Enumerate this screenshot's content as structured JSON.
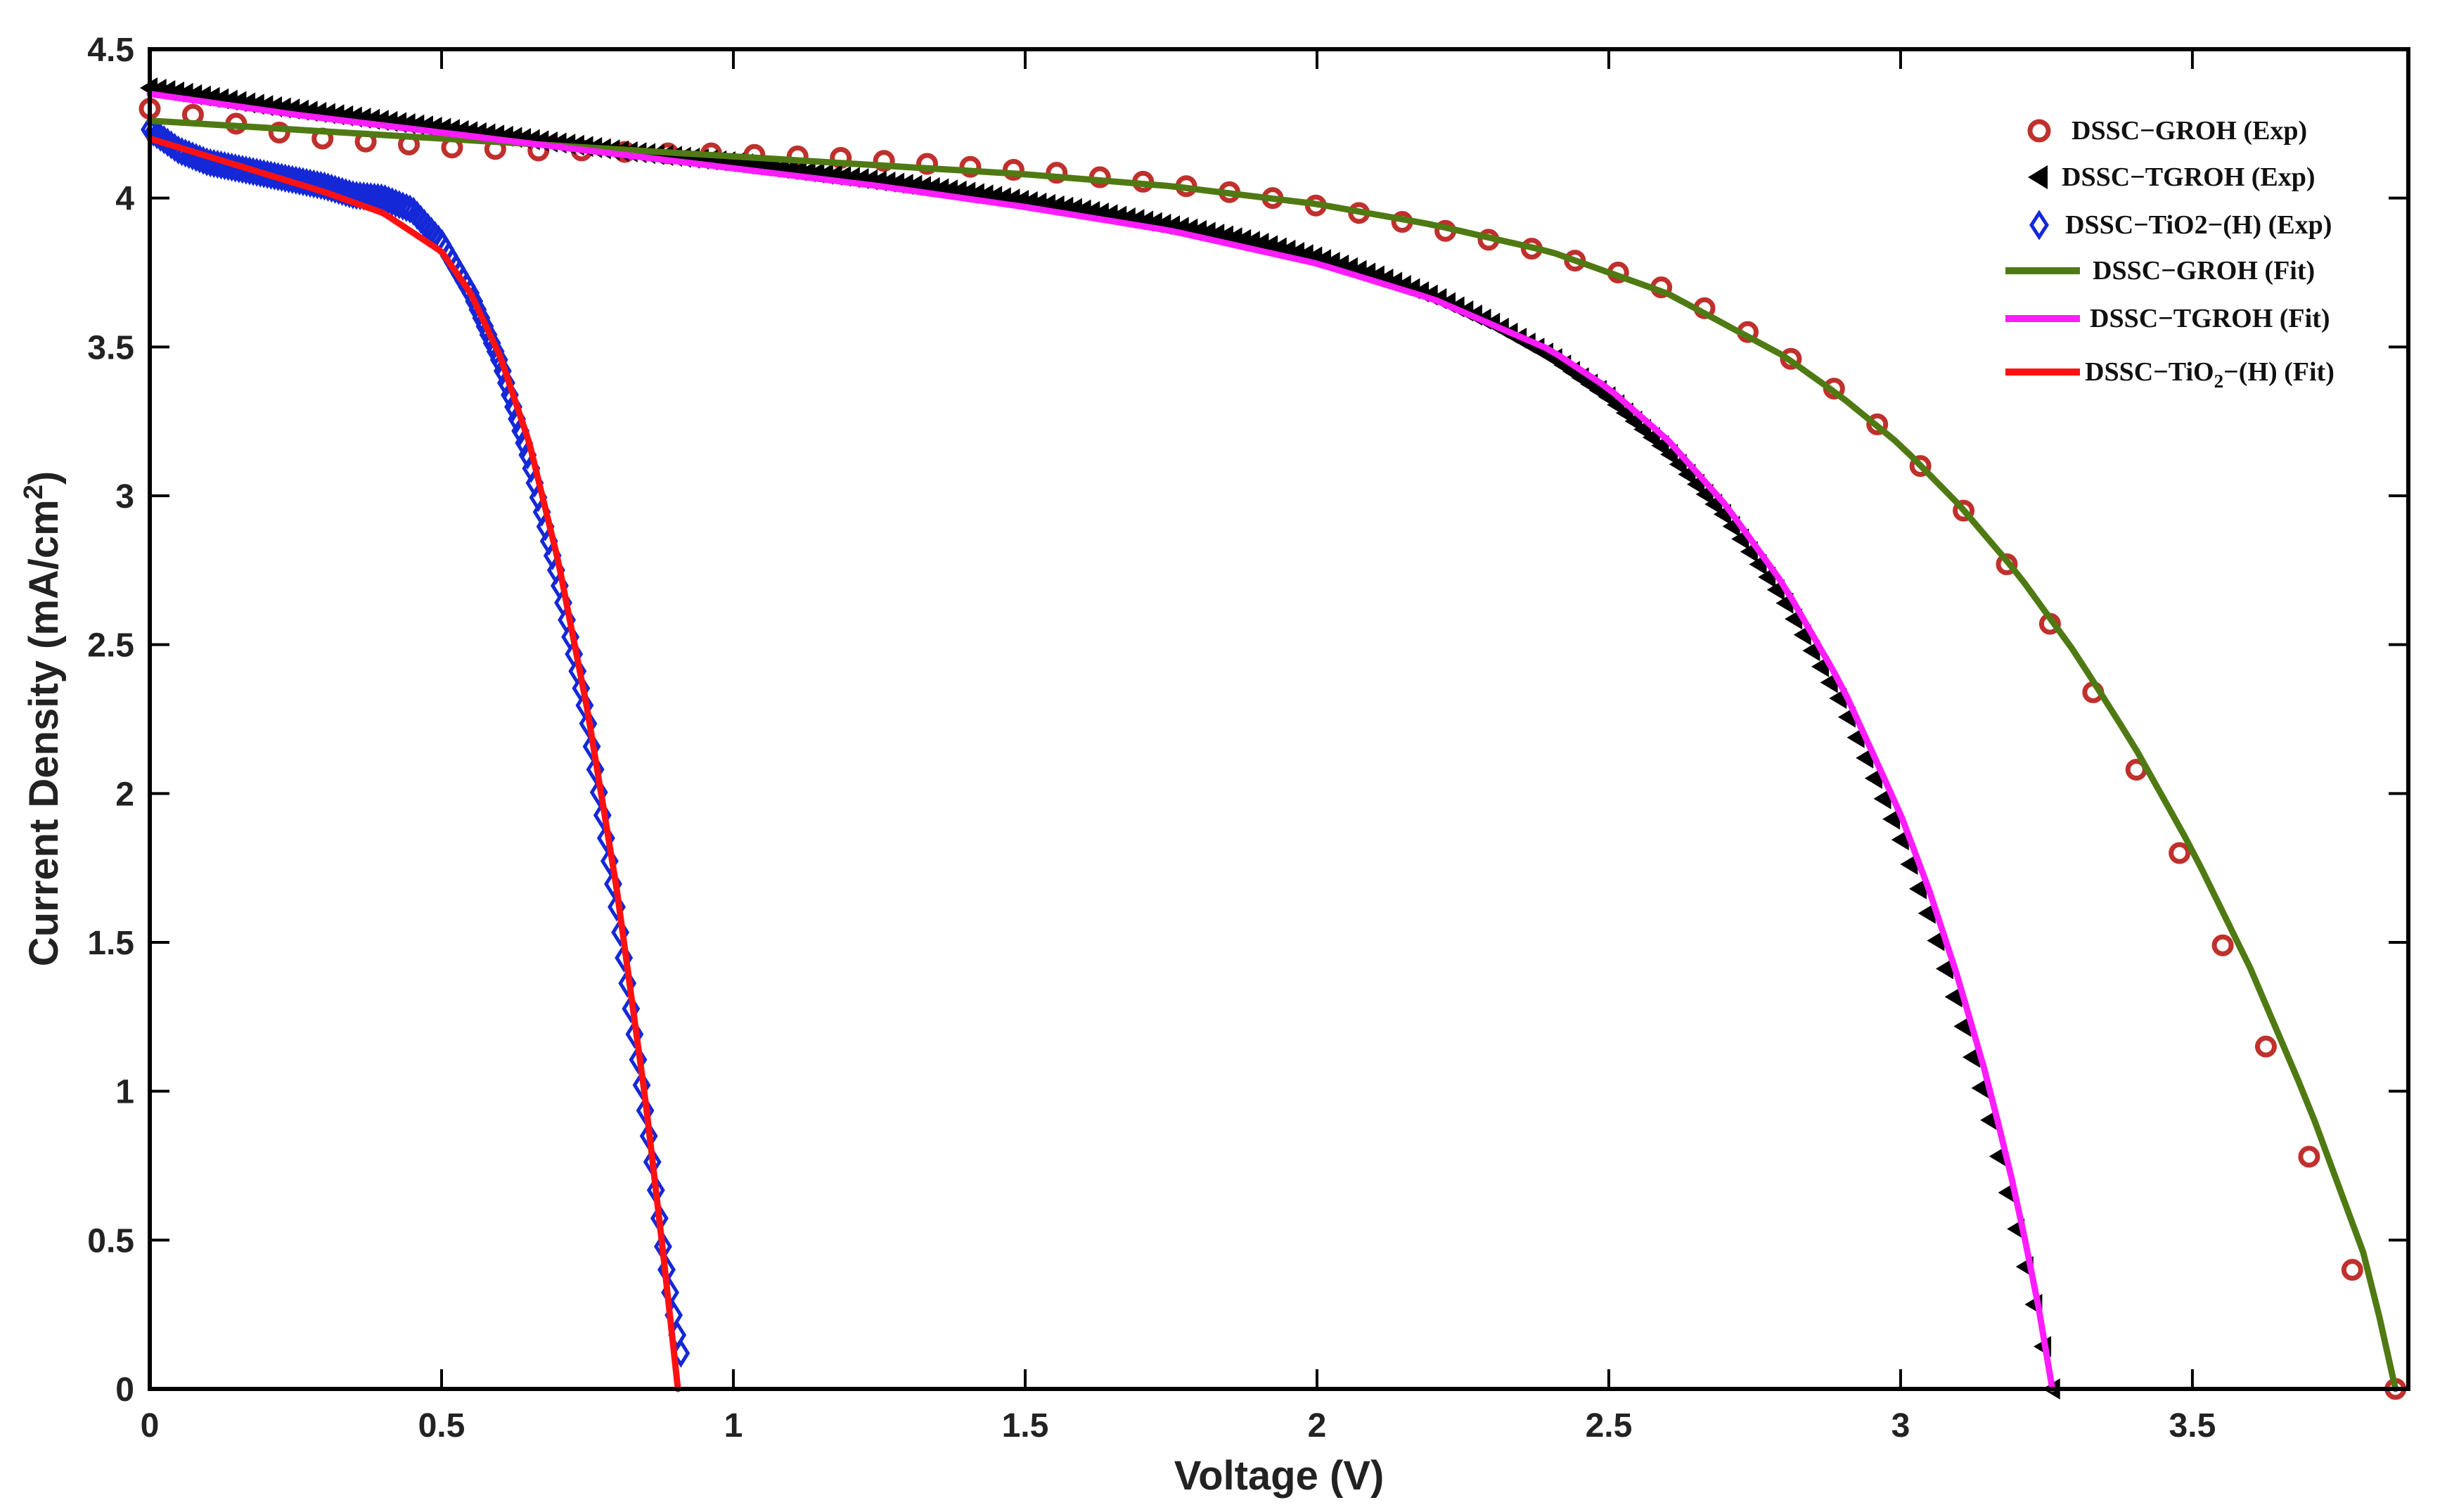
{
  "chart_data": {
    "type": "line",
    "title": "",
    "xlabel": "Voltage (V)",
    "ylabel_main": "Current  Density  (mA/cm",
    "ylabel_sup": "2",
    "ylabel_close": ")",
    "xlim": [
      0,
      3.87
    ],
    "ylim": [
      0,
      4.5
    ],
    "xticks": [
      0,
      0.5,
      1,
      1.5,
      2,
      2.5,
      3,
      3.5
    ],
    "xtick_labels": [
      "0",
      "0.5",
      "1",
      "1.5",
      "2",
      "2.5",
      "3",
      "3.5"
    ],
    "yticks": [
      0,
      0.5,
      1,
      1.5,
      2,
      2.5,
      3,
      3.5,
      4,
      4.5
    ],
    "ytick_labels": [
      "0",
      "0.5",
      "1",
      "1.5",
      "2",
      "2.5",
      "3",
      "3.5",
      "4",
      "4.5"
    ],
    "grid": false,
    "legend_position": "top-right",
    "series": [
      {
        "name": "DSSC−GROH (Exp)",
        "kind": "exp",
        "marker": "circle",
        "color": "#c0302c",
        "x": [
          0,
          0.074,
          0.148,
          0.222,
          0.296,
          0.37,
          0.444,
          0.518,
          0.592,
          0.666,
          0.74,
          0.814,
          0.888,
          0.962,
          1.036,
          1.11,
          1.184,
          1.258,
          1.332,
          1.406,
          1.48,
          1.554,
          1.628,
          1.702,
          1.776,
          1.85,
          1.924,
          1.998,
          2.072,
          2.146,
          2.22,
          2.294,
          2.368,
          2.442,
          2.516,
          2.59,
          2.664,
          2.738,
          2.812,
          2.886,
          2.96,
          3.034,
          3.108,
          3.182,
          3.256,
          3.33,
          3.404,
          3.478,
          3.552,
          3.626,
          3.7,
          3.774,
          3.848
        ],
        "y": [
          4.3,
          4.28,
          4.25,
          4.22,
          4.2,
          4.19,
          4.18,
          4.17,
          4.165,
          4.16,
          4.16,
          4.155,
          4.15,
          4.15,
          4.145,
          4.14,
          4.135,
          4.125,
          4.115,
          4.105,
          4.095,
          4.085,
          4.07,
          4.055,
          4.04,
          4.02,
          4.0,
          3.975,
          3.95,
          3.92,
          3.89,
          3.86,
          3.83,
          3.79,
          3.75,
          3.7,
          3.63,
          3.55,
          3.46,
          3.36,
          3.24,
          3.1,
          2.95,
          2.77,
          2.57,
          2.34,
          2.08,
          1.8,
          1.49,
          1.15,
          0.78,
          0.4,
          0.0
        ]
      },
      {
        "name": "DSSC−TGROH (Exp)",
        "kind": "exp",
        "marker": "triangle-left",
        "color": "#000000",
        "x": [
          0,
          0.2,
          0.4,
          0.6,
          0.8,
          1.0,
          1.2,
          1.4,
          1.6,
          1.8,
          1.9,
          2.0,
          2.1,
          2.2,
          2.3,
          2.4,
          2.5,
          2.6,
          2.7,
          2.8,
          2.9,
          3.0,
          3.05,
          3.1,
          3.15,
          3.2,
          3.23,
          3.26
        ],
        "y": [
          4.37,
          4.31,
          4.26,
          4.21,
          4.16,
          4.12,
          4.07,
          4.02,
          3.96,
          3.89,
          3.85,
          3.8,
          3.74,
          3.67,
          3.58,
          3.47,
          3.33,
          3.15,
          2.93,
          2.65,
          2.3,
          1.85,
          1.58,
          1.27,
          0.93,
          0.53,
          0.28,
          0.0
        ]
      },
      {
        "name": "DSSC−TiO2−(H) (Exp)",
        "kind": "exp",
        "marker": "diamond",
        "color": "#1428d8",
        "x": [
          0,
          0.05,
          0.1,
          0.15,
          0.2,
          0.25,
          0.3,
          0.35,
          0.4,
          0.45,
          0.5,
          0.55,
          0.6,
          0.65,
          0.7,
          0.75,
          0.8,
          0.83,
          0.86,
          0.88,
          0.9,
          0.91
        ],
        "y": [
          4.23,
          4.16,
          4.12,
          4.1,
          4.08,
          4.06,
          4.04,
          4.01,
          4.0,
          3.96,
          3.85,
          3.68,
          3.45,
          3.12,
          2.72,
          2.25,
          1.62,
          1.2,
          0.78,
          0.47,
          0.22,
          0.12
        ]
      },
      {
        "name": "DSSC−GROH (Fit)",
        "kind": "fit",
        "color": "#4f7a13",
        "x": [
          0,
          0.25,
          0.5,
          0.75,
          1.0,
          1.25,
          1.5,
          1.75,
          2.0,
          2.2,
          2.4,
          2.6,
          2.8,
          2.9,
          3.0,
          3.1,
          3.2,
          3.3,
          3.4,
          3.5,
          3.6,
          3.7,
          3.8,
          3.848
        ],
        "y": [
          4.26,
          4.23,
          4.2,
          4.17,
          4.14,
          4.11,
          4.08,
          4.04,
          3.98,
          3.91,
          3.82,
          3.68,
          3.47,
          3.33,
          3.17,
          2.97,
          2.74,
          2.47,
          2.16,
          1.81,
          1.41,
          0.95,
          0.42,
          0.0
        ]
      },
      {
        "name": "DSSC−TGROH (Fit)",
        "kind": "fit",
        "color": "#ff1cff",
        "x": [
          0,
          0.25,
          0.5,
          0.75,
          1.0,
          1.25,
          1.5,
          1.75,
          2.0,
          2.2,
          2.4,
          2.5,
          2.6,
          2.7,
          2.8,
          2.9,
          3.0,
          3.05,
          3.1,
          3.15,
          3.2,
          3.25,
          3.26
        ],
        "y": [
          4.35,
          4.28,
          4.22,
          4.16,
          4.1,
          4.04,
          3.97,
          3.89,
          3.78,
          3.66,
          3.49,
          3.36,
          3.19,
          2.97,
          2.7,
          2.36,
          1.93,
          1.67,
          1.37,
          1.03,
          0.63,
          0.14,
          0.0
        ]
      },
      {
        "name": "DSSC−TiO",
        "name_sub": "2",
        "name_rest": "−(H) (Fit)",
        "kind": "fit",
        "color": "#ff1111",
        "x": [
          0,
          0.1,
          0.2,
          0.3,
          0.4,
          0.5,
          0.55,
          0.6,
          0.65,
          0.7,
          0.75,
          0.8,
          0.85,
          0.88,
          0.905
        ],
        "y": [
          4.2,
          4.14,
          4.08,
          4.02,
          3.95,
          3.82,
          3.68,
          3.47,
          3.18,
          2.78,
          2.28,
          1.68,
          0.96,
          0.45,
          0.0
        ]
      }
    ]
  }
}
